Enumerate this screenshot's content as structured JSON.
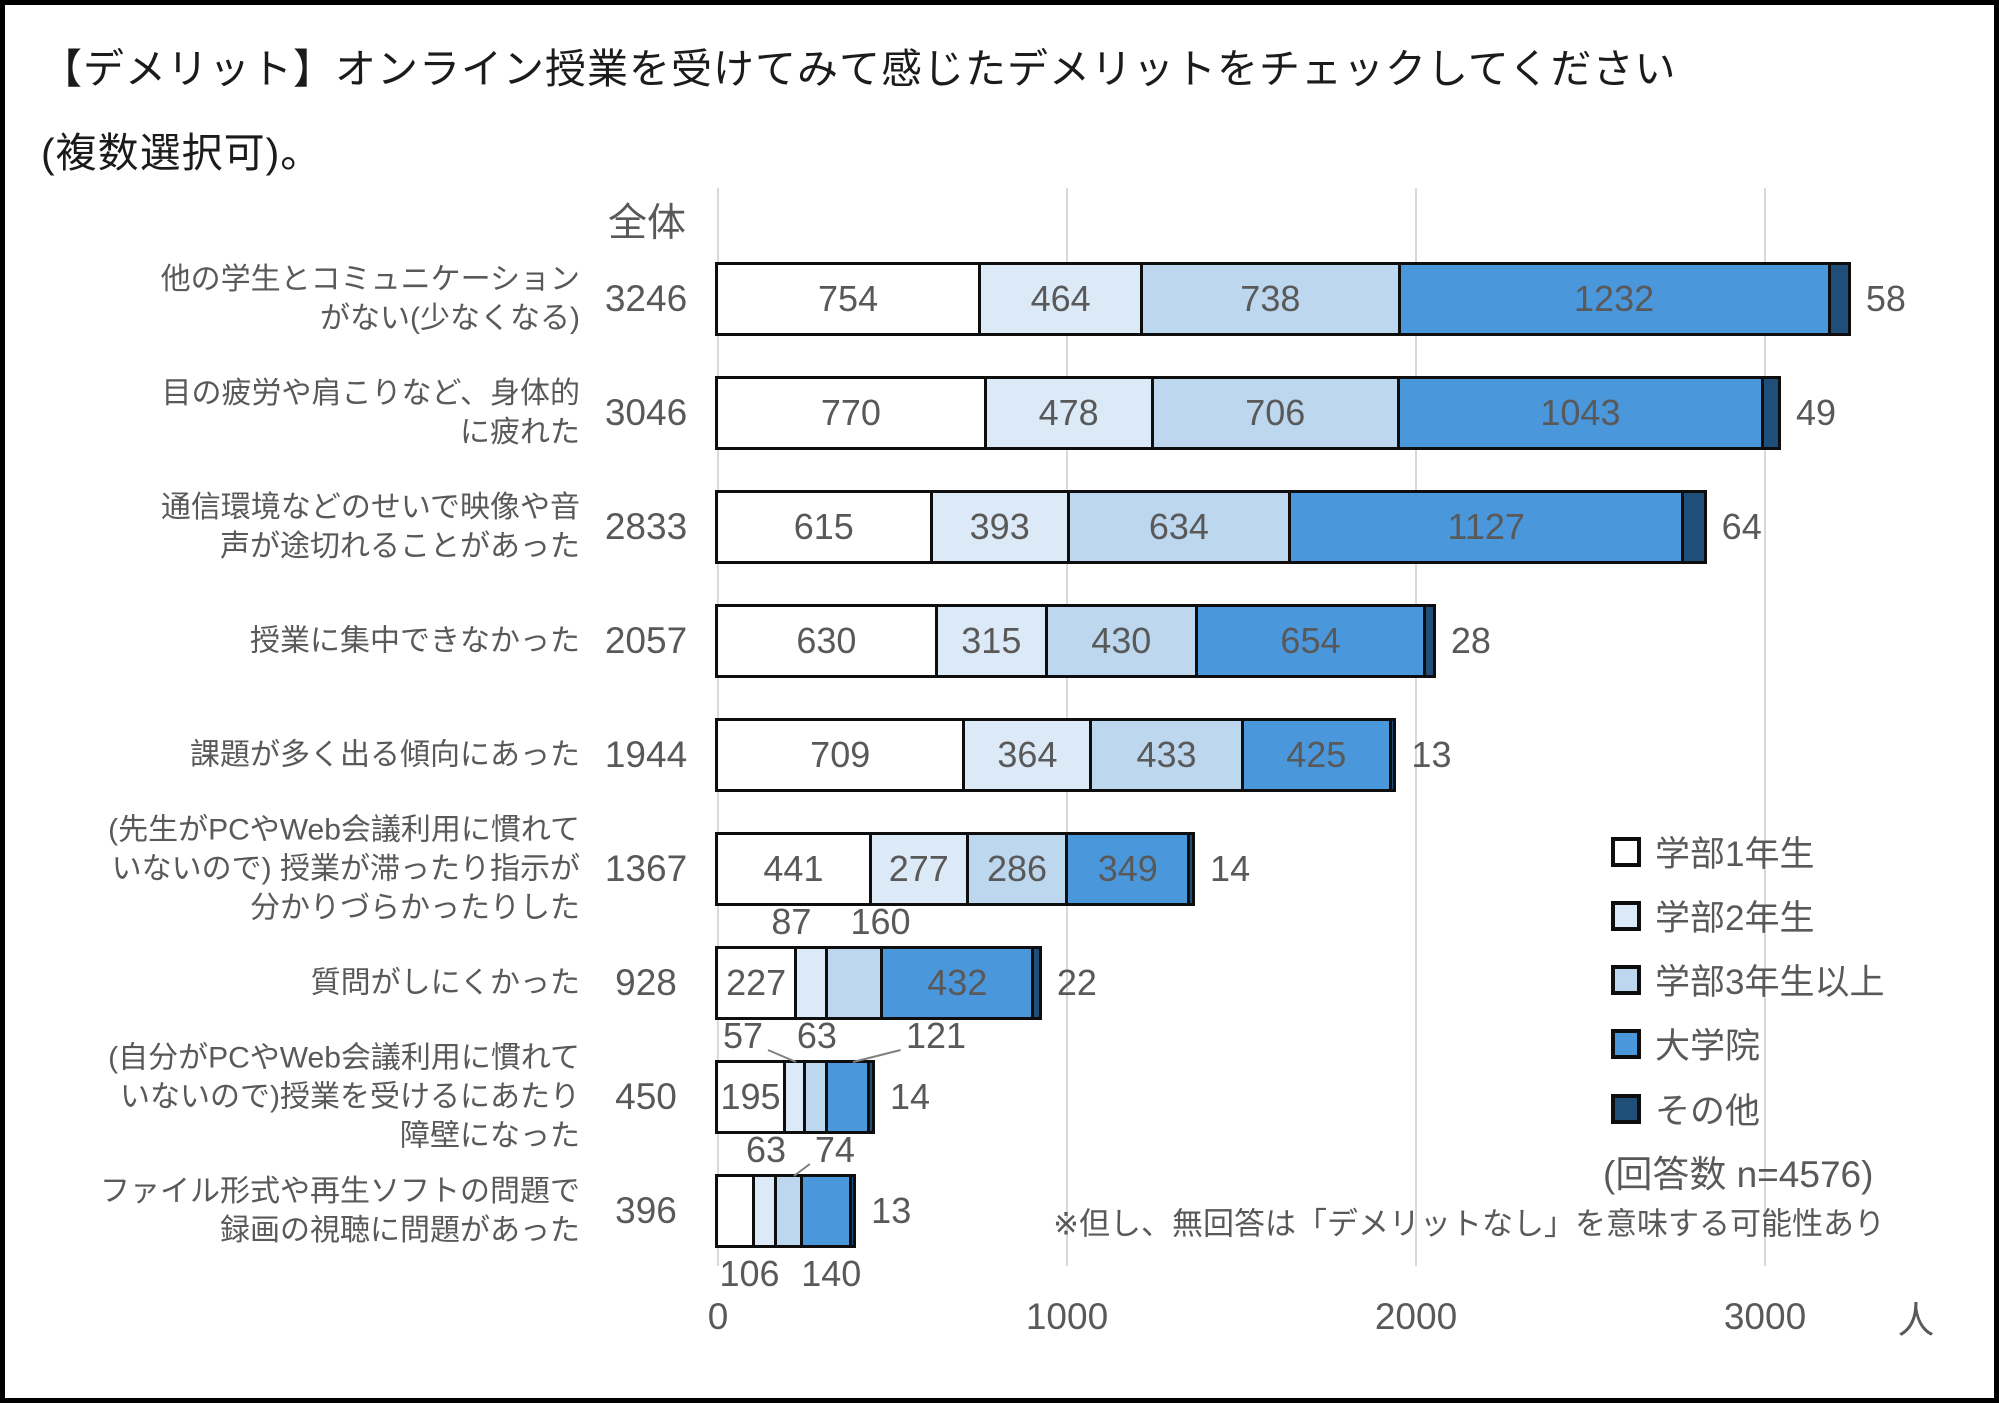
{
  "title": {
    "line1": "【デメリット】オンライン授業を受けてみて感じたデメリットをチェックしてください",
    "line2": "(複数選択可)。"
  },
  "chart_data": {
    "type": "bar",
    "stacked": true,
    "orientation": "horizontal",
    "column_header": "全体",
    "unit": "人",
    "x_ticks": [
      0,
      1000,
      2000,
      3000
    ],
    "xlim": [
      0,
      3450
    ],
    "grid": "vertical",
    "gridline_color": "#d9d9d9",
    "segment_border_color": "#0e0e0e",
    "text_color": "#595959",
    "legend_position": "right-bottom",
    "series": [
      {
        "name": "学部1年生",
        "color": "#ffffff"
      },
      {
        "name": "学部2年生",
        "color": "#dce9f6"
      },
      {
        "name": "学部3年生以上",
        "color": "#bcd7ee"
      },
      {
        "name": "大学院",
        "color": "#4b97db"
      },
      {
        "name": "その他",
        "color": "#1f4e79"
      }
    ],
    "rows": [
      {
        "label": "他の学生とコミュニケーション\nがない(少なくなる)",
        "total": 3246,
        "values": [
          754,
          464,
          738,
          1232,
          58
        ]
      },
      {
        "label": "目の疲労や肩こりなど、身体的\nに疲れた",
        "total": 3046,
        "values": [
          770,
          478,
          706,
          1043,
          49
        ]
      },
      {
        "label": "通信環境などのせいで映像や音\n声が途切れることがあった",
        "total": 2833,
        "values": [
          615,
          393,
          634,
          1127,
          64
        ]
      },
      {
        "label": "授業に集中できなかった",
        "total": 2057,
        "values": [
          630,
          315,
          430,
          654,
          28
        ]
      },
      {
        "label": "課題が多く出る傾向にあった",
        "total": 1944,
        "values": [
          709,
          364,
          433,
          425,
          13
        ]
      },
      {
        "label": "(先生がPCやWeb会議利用に慣れて\nいないので) 授業が滞ったり指示が\n分かりづらかったりした",
        "total": 1367,
        "values": [
          441,
          277,
          286,
          349,
          14
        ]
      },
      {
        "label": "質問がしにくかった",
        "total": 928,
        "values": [
          227,
          87,
          160,
          432,
          22
        ],
        "placements": [
          "inside",
          "above",
          "above",
          "inside",
          "outside"
        ],
        "dx": [
          0,
          -21,
          25,
          0,
          0
        ],
        "leaders": [
          false,
          false,
          false,
          false,
          false
        ]
      },
      {
        "label": "(自分がPCやWeb会議利用に慣れて\nいないので)授業を受けるにあたり\n障壁になった",
        "total": 450,
        "values": [
          195,
          57,
          63,
          121,
          14
        ],
        "placements": [
          "inside",
          "above",
          "above",
          "above",
          "outside"
        ],
        "dx": [
          0,
          -53,
          0,
          87,
          0
        ],
        "leaders": [
          false,
          true,
          false,
          true,
          false
        ]
      },
      {
        "label": "ファイル形式や再生ソフトの問題で\n録画の視聴に問題があった",
        "total": 396,
        "values": [
          106,
          63,
          74,
          140,
          13
        ],
        "placements": [
          "below",
          "above",
          "above",
          "below",
          "outside"
        ],
        "dx": [
          13,
          0,
          45,
          4,
          0
        ],
        "leaders": [
          false,
          false,
          true,
          false,
          false
        ]
      }
    ],
    "legend_note": "(回答数 n=4576)",
    "footnote": "※但し、無回答は「デメリットなし」を意味する可能性あり"
  }
}
